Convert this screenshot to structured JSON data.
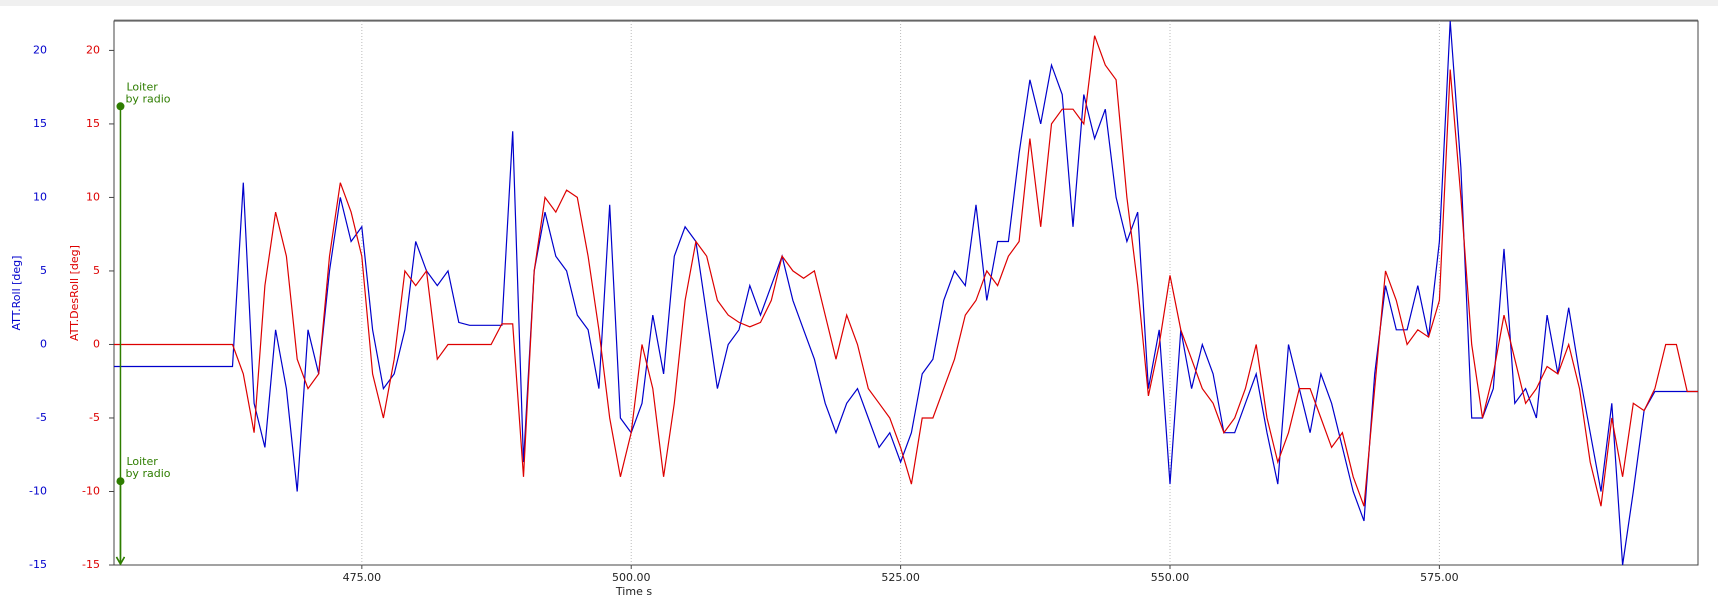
{
  "chart_data": {
    "type": "line",
    "xlabel": "Time s",
    "x": [
      452,
      453,
      454,
      455,
      456,
      457,
      458,
      459,
      460,
      461,
      462,
      463,
      464,
      465,
      466,
      467,
      468,
      469,
      470,
      471,
      472,
      473,
      474,
      475,
      476,
      477,
      478,
      479,
      480,
      481,
      482,
      483,
      484,
      485,
      486,
      487,
      488,
      489,
      490,
      491,
      492,
      493,
      494,
      495,
      496,
      497,
      498,
      499,
      500,
      501,
      502,
      503,
      504,
      505,
      506,
      507,
      508,
      509,
      510,
      511,
      512,
      513,
      514,
      515,
      516,
      517,
      518,
      519,
      520,
      521,
      522,
      523,
      524,
      525,
      526,
      527,
      528,
      529,
      530,
      531,
      532,
      533,
      534,
      535,
      536,
      537,
      538,
      539,
      540,
      541,
      542,
      543,
      544,
      545,
      546,
      547,
      548,
      549,
      550,
      551,
      552,
      553,
      554,
      555,
      556,
      557,
      558,
      559,
      560,
      561,
      562,
      563,
      564,
      565,
      566,
      567,
      568,
      569,
      570,
      571,
      572,
      573,
      574,
      575,
      576,
      577,
      578,
      579,
      580,
      581,
      582,
      583,
      584,
      585,
      586,
      587,
      588,
      589,
      590,
      591,
      592,
      593,
      594,
      595,
      596,
      597,
      598,
      599
    ],
    "series": [
      {
        "name": "ATT.Roll [deg]",
        "color": "#0000cc",
        "values": [
          -1.5,
          -1.5,
          -1.5,
          -1.5,
          -1.5,
          -1.5,
          -1.5,
          -1.5,
          -1.5,
          -1.5,
          -1.5,
          -1.5,
          11,
          -4,
          -7,
          1,
          -3,
          -10,
          1,
          -2,
          5,
          10,
          7,
          8,
          1,
          -3,
          -2,
          1,
          7,
          5,
          4,
          5,
          1.5,
          1.3,
          1.3,
          1.3,
          1.3,
          14.5,
          -8,
          5,
          9,
          6,
          5,
          2,
          1,
          -3,
          9.5,
          -5,
          -6,
          -4,
          2,
          -2,
          6,
          8,
          7,
          2,
          -3,
          0,
          1,
          4,
          2,
          4,
          6,
          3,
          1,
          -1,
          -4,
          -6,
          -4,
          -3,
          -5,
          -7,
          -6,
          -8,
          -6,
          -2,
          -1,
          3,
          5,
          4,
          9.5,
          3,
          7,
          7,
          13,
          18,
          15,
          19,
          17,
          8,
          17,
          14,
          16,
          10,
          7,
          9,
          -3,
          1,
          -9.5,
          1,
          -3,
          0,
          -2,
          -6,
          -6,
          -4,
          -2,
          -6,
          -9.5,
          0,
          -3,
          -6,
          -2,
          -4,
          -7,
          -10,
          -12,
          -2,
          4,
          1,
          1,
          4,
          0.5,
          7,
          22,
          12,
          -5,
          -5,
          -3,
          6.5,
          -4,
          -3,
          -5,
          2,
          -2,
          2.5,
          -2,
          -6,
          -10,
          -4,
          -15,
          -10,
          -4.5,
          -3.2,
          -3.2,
          -3.2,
          -3.2,
          -3.2
        ]
      },
      {
        "name": "ATT.DesRoll [deg]",
        "color": "#dd0000",
        "values": [
          0,
          0,
          0,
          0,
          0,
          0,
          0,
          0,
          0,
          0,
          0,
          0,
          -2,
          -6,
          4,
          9,
          6,
          -1,
          -3,
          -2,
          6,
          11,
          9,
          6,
          -2,
          -5,
          -1,
          5,
          4,
          5,
          -1,
          0,
          0,
          0,
          0,
          0,
          1.4,
          1.4,
          -9,
          5,
          10,
          9,
          10.5,
          10,
          6,
          1,
          -5,
          -9,
          -6,
          0,
          -3,
          -9,
          -4,
          3,
          7,
          6,
          3,
          2,
          1.5,
          1.2,
          1.5,
          3,
          6,
          5,
          4.5,
          5,
          2,
          -1,
          2,
          0,
          -3,
          -4,
          -5,
          -7,
          -9.5,
          -5,
          -5,
          -3,
          -1,
          2,
          3,
          5,
          4,
          6,
          7,
          14,
          8,
          15,
          16,
          16,
          15,
          21,
          19,
          18,
          10,
          4,
          -3.5,
          0,
          4.7,
          1,
          -1,
          -3,
          -4,
          -6,
          -5,
          -3,
          0,
          -5,
          -8,
          -6,
          -3,
          -3,
          -5,
          -7,
          -6,
          -9,
          -11,
          -3,
          5,
          3,
          0,
          1,
          0.5,
          3,
          18.7,
          10,
          0,
          -5,
          -2,
          2,
          -1,
          -4,
          -3,
          -1.5,
          -2,
          0,
          -3,
          -8,
          -11,
          -5,
          -9,
          -4,
          -4.5,
          -3,
          0,
          0,
          -3.2,
          -3.2
        ]
      }
    ],
    "xlim": [
      452,
      599
    ],
    "ylim": [
      -15,
      22
    ],
    "xticks": [
      {
        "value": 475,
        "label": "475.00"
      },
      {
        "value": 500,
        "label": "500.00"
      },
      {
        "value": 525,
        "label": "525.00"
      },
      {
        "value": 550,
        "label": "550.00"
      },
      {
        "value": 575,
        "label": "575.00"
      }
    ],
    "yticks": [
      -15,
      -10,
      -5,
      0,
      5,
      10,
      15,
      20
    ],
    "grid": "x",
    "annotations": [
      {
        "lines": [
          "Loiter",
          "by radio"
        ],
        "x": 452.6,
        "y": 16.2,
        "color": "#2e7d00"
      },
      {
        "lines": [
          "Loiter",
          "by radio"
        ],
        "x": 452.6,
        "y": -9.3,
        "color": "#2e7d00"
      }
    ]
  }
}
